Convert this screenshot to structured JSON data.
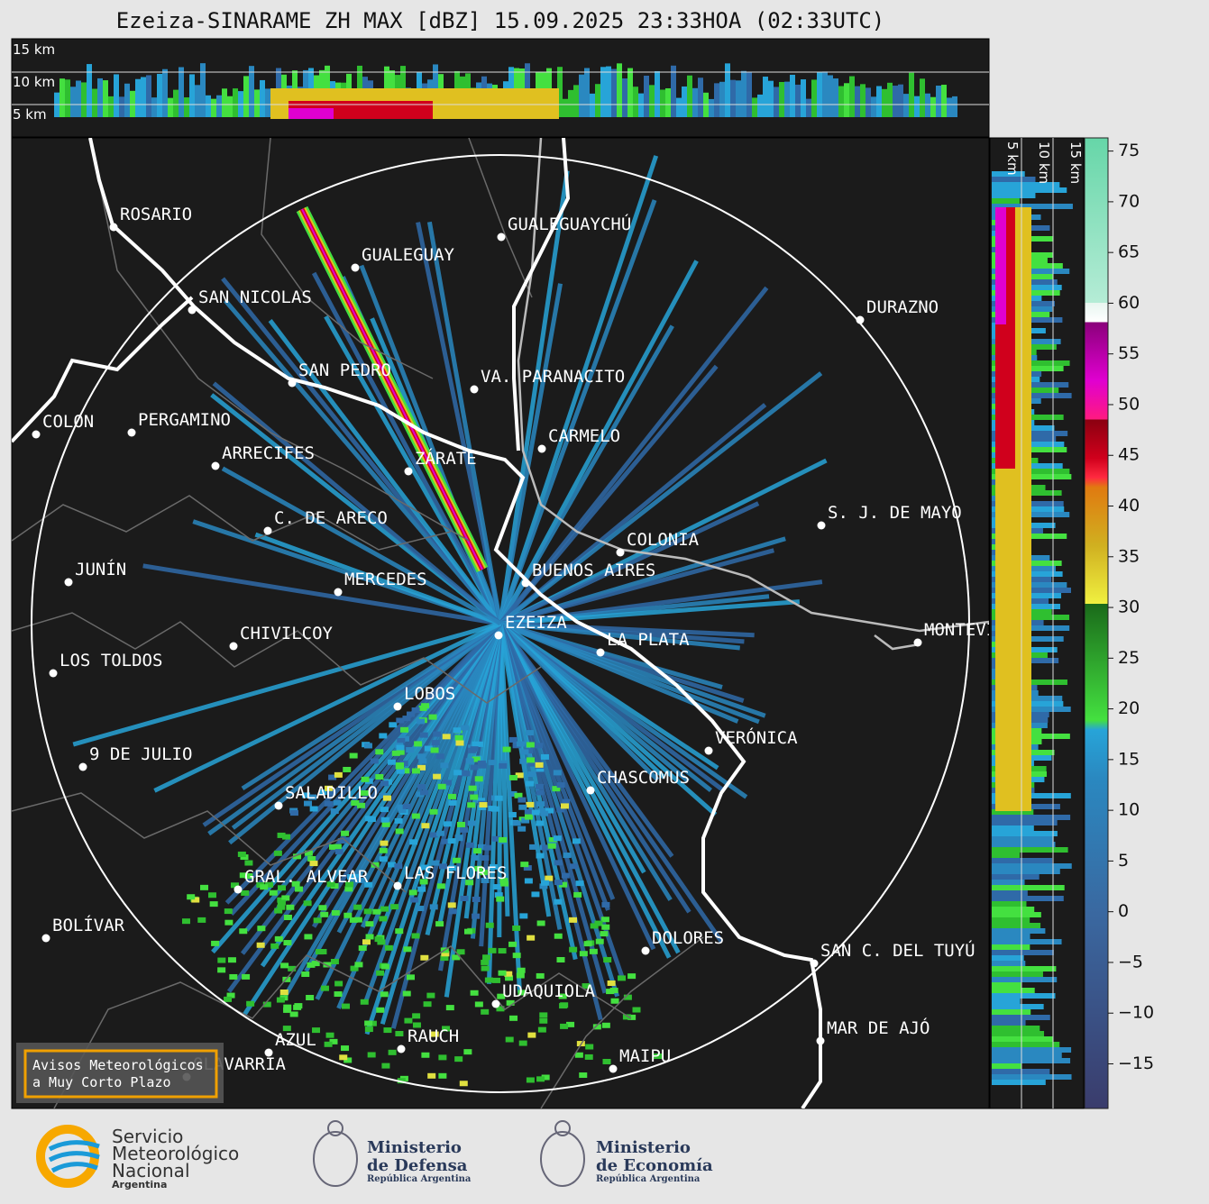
{
  "title": "Ezeiza-SINARAME ZH MAX [dBZ] 15.09.2025 23:33HOA (02:33UTC)",
  "top_panel": {
    "heights": [
      "15 km",
      "10 km",
      "5 km"
    ]
  },
  "side_panel": {
    "heights": [
      "5 km",
      "10 km",
      "15 km"
    ]
  },
  "colorbar": {
    "lim": [
      -19.4,
      76.3
    ],
    "ticks": [
      {
        "value": -15,
        "label": "−15"
      },
      {
        "value": -10,
        "label": "−10"
      },
      {
        "value": -5,
        "label": "−5"
      },
      0,
      5,
      10,
      15,
      20,
      25,
      30,
      35,
      40,
      45,
      50,
      55,
      60,
      65,
      70,
      75
    ]
  },
  "cities": [
    {
      "name": "ROSARIO"
    },
    {
      "name": "GUALEGUAYCHÚ"
    },
    {
      "name": "GUALEGUAY"
    },
    {
      "name": "SAN NICOLAS"
    },
    {
      "name": "DURAZNO"
    },
    {
      "name": "SAN PEDRO"
    },
    {
      "name": "VA. PARANACITO"
    },
    {
      "name": "COLON"
    },
    {
      "name": "PERGAMINO"
    },
    {
      "name": "CARMELO"
    },
    {
      "name": "ARRECIFES"
    },
    {
      "name": "ZÁRATE"
    },
    {
      "name": "S. J. DE MAYO"
    },
    {
      "name": "C. DE ARECO"
    },
    {
      "name": "COLONIA"
    },
    {
      "name": "JUNÍN"
    },
    {
      "name": "BUENOS AIRES"
    },
    {
      "name": "MERCEDES"
    },
    {
      "name": "EZEIZA"
    },
    {
      "name": "CHIVILCOY"
    },
    {
      "name": "LA PLATA"
    },
    {
      "name": "MONTEVIDEO"
    },
    {
      "name": "LOS TOLDOS"
    },
    {
      "name": "LOBOS"
    },
    {
      "name": "VERÓNICA"
    },
    {
      "name": "9 DE JULIO"
    },
    {
      "name": "CHASCOMUS"
    },
    {
      "name": "SALADILLO"
    },
    {
      "name": "GRAL. ALVEAR"
    },
    {
      "name": "LAS FLORES"
    },
    {
      "name": "BOLÍVAR"
    },
    {
      "name": "DOLORES"
    },
    {
      "name": "SAN C. DEL TUYÚ"
    },
    {
      "name": "UDAQUIOLA"
    },
    {
      "name": "MAR DE AJÓ"
    },
    {
      "name": "AZUL"
    },
    {
      "name": "RAUCH"
    },
    {
      "name": "OLAVARRÍA"
    },
    {
      "name": "MAIPU"
    }
  ],
  "alert_box": {
    "lines": [
      "Avisos Meteorológicos",
      "a Muy Corto Plazo"
    ]
  },
  "footer": {
    "smn": [
      "Servicio",
      "Meteorológico",
      "Nacional",
      "Argentina"
    ],
    "defensa": [
      "Ministerio",
      "de Defensa",
      "República Argentina"
    ],
    "economia": [
      "Ministerio",
      "de Economía",
      "República Argentina"
    ]
  }
}
